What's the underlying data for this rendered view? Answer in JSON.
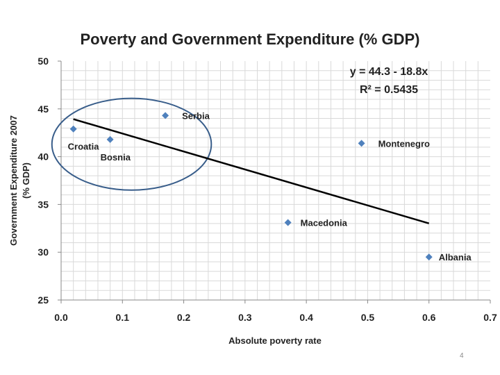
{
  "page_number": "4",
  "chart_data": {
    "type": "scatter",
    "title": "Poverty and Government Expenditure (% GDP)",
    "xlabel": "Absolute poverty rate",
    "ylabel_line1": "Government Expenditure 2007",
    "ylabel_line2": "(% GDP)",
    "xlim": [
      0,
      0.7
    ],
    "ylim": [
      25,
      50
    ],
    "xticks": [
      0,
      0.1,
      0.2,
      0.3,
      0.4,
      0.5,
      0.6,
      0.7
    ],
    "xtick_labels": [
      "0.0",
      "0.1",
      "0.2",
      "0.3",
      "0.4",
      "0.5",
      "0.6",
      "0.7"
    ],
    "yticks": [
      25,
      30,
      35,
      40,
      45,
      50
    ],
    "ytick_labels": [
      "25",
      "30",
      "35",
      "40",
      "45",
      "50"
    ],
    "grid": true,
    "points": [
      {
        "label": "Croatia",
        "x": 0.02,
        "y": 42.9
      },
      {
        "label": "Bosnia",
        "x": 0.08,
        "y": 41.8
      },
      {
        "label": "Serbia",
        "x": 0.17,
        "y": 44.3
      },
      {
        "label": "Montenegro",
        "x": 0.49,
        "y": 41.4
      },
      {
        "label": "Macedonia",
        "x": 0.37,
        "y": 33.1
      },
      {
        "label": "Albania",
        "x": 0.6,
        "y": 29.5
      }
    ],
    "trendline": {
      "intercept": 44.3,
      "slope": -18.8,
      "x_range": [
        0.02,
        0.6
      ]
    },
    "equation_line1": "y = 44.3 - 18.8x",
    "equation_line2": "R² = 0.5435",
    "highlight_ellipse": {
      "cx": 0.115,
      "cy": 41.3,
      "rx": 0.13,
      "ry": 4.8
    },
    "colors": {
      "marker": "#4f81bd",
      "trendline": "#000000",
      "ellipse": "#385d8a"
    }
  }
}
